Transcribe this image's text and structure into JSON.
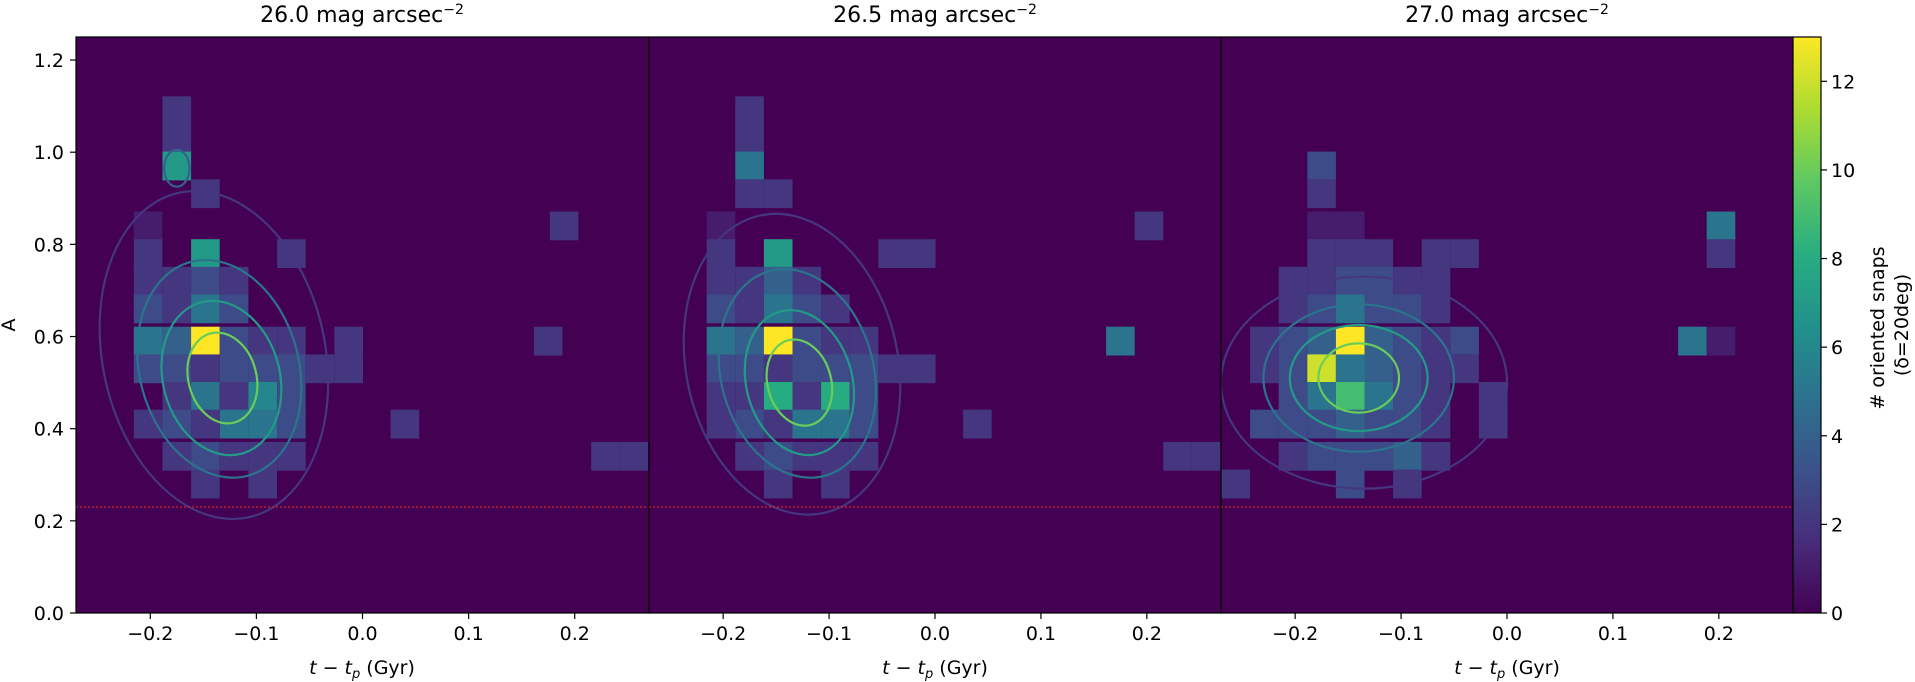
{
  "figure": {
    "ylabel": "A",
    "colorbar_label_line1": "# oriented snaps",
    "colorbar_label_line2": "(δ=20deg)"
  },
  "chart_data": {
    "type": "heatmap",
    "x_range": [
      -0.27,
      0.27
    ],
    "y_range": [
      0.0,
      1.25
    ],
    "x_ticks": [
      -0.2,
      -0.1,
      0.0,
      0.1,
      0.2
    ],
    "x_tick_labels": [
      "−0.2",
      "−0.1",
      "0.0",
      "0.1",
      "0.2"
    ],
    "y_ticks": [
      0.0,
      0.2,
      0.4,
      0.6,
      0.8,
      1.0,
      1.2
    ],
    "y_tick_labels": [
      "0.0",
      "0.2",
      "0.4",
      "0.6",
      "0.8",
      "1.0",
      "1.2"
    ],
    "bin_width_x": 0.027,
    "bin_width_y": 0.0625,
    "threshold_line_y": 0.23,
    "threshold_line_color": "#d62728",
    "colormap": "viridis",
    "colorbar": {
      "range": [
        0,
        13
      ],
      "ticks": [
        0,
        2,
        4,
        6,
        8,
        10,
        12
      ],
      "tick_labels": [
        "0",
        "2",
        "4",
        "6",
        "8",
        "10",
        "12"
      ],
      "label": "# oriented snaps (δ=20deg)"
    },
    "panels": [
      {
        "title_main": "26.0 mag arcsec",
        "title_sup": "−2",
        "xlabel_main": "t − t",
        "xlabel_sub": "p",
        "xlabel_unit": " (Gyr)",
        "show_ylabel": true,
        "bins": [
          [
            -0.175,
            1.09,
            2
          ],
          [
            -0.175,
            1.03,
            2
          ],
          [
            -0.175,
            0.97,
            7
          ],
          [
            -0.148,
            0.91,
            2
          ],
          [
            -0.202,
            0.84,
            1
          ],
          [
            -0.202,
            0.78,
            2
          ],
          [
            -0.148,
            0.78,
            7
          ],
          [
            -0.067,
            0.78,
            2
          ],
          [
            0.19,
            0.84,
            2
          ],
          [
            -0.202,
            0.72,
            2
          ],
          [
            -0.175,
            0.72,
            2
          ],
          [
            -0.148,
            0.72,
            3
          ],
          [
            -0.121,
            0.72,
            2
          ],
          [
            -0.202,
            0.66,
            3
          ],
          [
            -0.175,
            0.66,
            2
          ],
          [
            -0.148,
            0.66,
            5
          ],
          [
            -0.121,
            0.66,
            3
          ],
          [
            -0.202,
            0.59,
            5
          ],
          [
            -0.175,
            0.59,
            4
          ],
          [
            -0.148,
            0.59,
            13
          ],
          [
            -0.121,
            0.59,
            3
          ],
          [
            -0.094,
            0.59,
            2
          ],
          [
            -0.067,
            0.59,
            2
          ],
          [
            -0.013,
            0.59,
            2
          ],
          [
            0.175,
            0.59,
            2
          ],
          [
            -0.202,
            0.53,
            3
          ],
          [
            -0.175,
            0.53,
            3
          ],
          [
            -0.148,
            0.53,
            2
          ],
          [
            -0.121,
            0.53,
            3
          ],
          [
            -0.094,
            0.53,
            3
          ],
          [
            -0.067,
            0.53,
            3
          ],
          [
            -0.04,
            0.53,
            2
          ],
          [
            -0.013,
            0.53,
            2
          ],
          [
            -0.175,
            0.47,
            2
          ],
          [
            -0.148,
            0.47,
            5
          ],
          [
            -0.121,
            0.47,
            2
          ],
          [
            -0.094,
            0.47,
            6
          ],
          [
            -0.067,
            0.47,
            3
          ],
          [
            -0.202,
            0.41,
            2
          ],
          [
            -0.175,
            0.41,
            3
          ],
          [
            -0.148,
            0.41,
            2
          ],
          [
            -0.121,
            0.41,
            5
          ],
          [
            -0.094,
            0.41,
            5
          ],
          [
            -0.067,
            0.41,
            3
          ],
          [
            0.04,
            0.41,
            2
          ],
          [
            -0.175,
            0.34,
            2
          ],
          [
            -0.148,
            0.34,
            3
          ],
          [
            -0.121,
            0.34,
            2
          ],
          [
            -0.094,
            0.34,
            2
          ],
          [
            -0.067,
            0.34,
            2
          ],
          [
            0.229,
            0.34,
            2
          ],
          [
            0.256,
            0.34,
            2
          ],
          [
            -0.148,
            0.28,
            2
          ],
          [
            -0.094,
            0.28,
            2
          ]
        ],
        "contours": [
          {
            "cx": -0.14,
            "cy": 0.56,
            "rx": 0.105,
            "ry": 0.36,
            "rot": -12,
            "level": 2
          },
          {
            "cx": -0.135,
            "cy": 0.53,
            "rx": 0.075,
            "ry": 0.24,
            "rot": -15,
            "level": 5
          },
          {
            "cx": -0.133,
            "cy": 0.51,
            "rx": 0.055,
            "ry": 0.17,
            "rot": -15,
            "level": 7
          },
          {
            "cx": -0.132,
            "cy": 0.51,
            "rx": 0.032,
            "ry": 0.1,
            "rot": -15,
            "level": 10
          },
          {
            "cx": -0.175,
            "cy": 0.965,
            "rx": 0.012,
            "ry": 0.04,
            "rot": 0,
            "level": 4
          }
        ]
      },
      {
        "title_main": "26.5 mag arcsec",
        "title_sup": "−2",
        "xlabel_main": "t − t",
        "xlabel_sub": "p",
        "xlabel_unit": " (Gyr)",
        "show_ylabel": false,
        "bins": [
          [
            -0.175,
            1.09,
            2
          ],
          [
            -0.175,
            1.03,
            2
          ],
          [
            -0.175,
            0.97,
            5
          ],
          [
            -0.175,
            0.91,
            2
          ],
          [
            -0.148,
            0.91,
            2
          ],
          [
            -0.202,
            0.84,
            1
          ],
          [
            -0.202,
            0.78,
            2
          ],
          [
            -0.148,
            0.78,
            7
          ],
          [
            -0.04,
            0.78,
            2
          ],
          [
            -0.013,
            0.78,
            2
          ],
          [
            0.202,
            0.84,
            2
          ],
          [
            -0.202,
            0.72,
            2
          ],
          [
            -0.175,
            0.72,
            2
          ],
          [
            -0.148,
            0.72,
            4
          ],
          [
            -0.121,
            0.72,
            2
          ],
          [
            -0.202,
            0.66,
            3
          ],
          [
            -0.175,
            0.66,
            2
          ],
          [
            -0.148,
            0.66,
            5
          ],
          [
            -0.121,
            0.66,
            3
          ],
          [
            -0.094,
            0.66,
            2
          ],
          [
            -0.202,
            0.59,
            5
          ],
          [
            -0.175,
            0.59,
            4
          ],
          [
            -0.148,
            0.59,
            13
          ],
          [
            -0.121,
            0.59,
            3
          ],
          [
            -0.094,
            0.59,
            2
          ],
          [
            -0.067,
            0.59,
            2
          ],
          [
            0.175,
            0.59,
            5
          ],
          [
            -0.202,
            0.53,
            3
          ],
          [
            -0.175,
            0.53,
            3
          ],
          [
            -0.148,
            0.53,
            2
          ],
          [
            -0.121,
            0.53,
            3
          ],
          [
            -0.094,
            0.53,
            3
          ],
          [
            -0.067,
            0.53,
            3
          ],
          [
            -0.04,
            0.53,
            2
          ],
          [
            -0.013,
            0.53,
            2
          ],
          [
            -0.202,
            0.47,
            2
          ],
          [
            -0.175,
            0.47,
            2
          ],
          [
            -0.148,
            0.47,
            8
          ],
          [
            -0.121,
            0.47,
            2
          ],
          [
            -0.094,
            0.47,
            8
          ],
          [
            -0.067,
            0.47,
            3
          ],
          [
            -0.202,
            0.41,
            2
          ],
          [
            -0.175,
            0.41,
            3
          ],
          [
            -0.148,
            0.41,
            2
          ],
          [
            -0.121,
            0.41,
            5
          ],
          [
            -0.094,
            0.41,
            5
          ],
          [
            -0.067,
            0.41,
            3
          ],
          [
            0.04,
            0.41,
            2
          ],
          [
            -0.175,
            0.34,
            2
          ],
          [
            -0.148,
            0.34,
            3
          ],
          [
            -0.121,
            0.34,
            2
          ],
          [
            -0.094,
            0.34,
            2
          ],
          [
            -0.067,
            0.34,
            2
          ],
          [
            0.229,
            0.34,
            2
          ],
          [
            0.256,
            0.34,
            2
          ],
          [
            -0.148,
            0.28,
            2
          ],
          [
            -0.094,
            0.28,
            2
          ]
        ],
        "contours": [
          {
            "cx": -0.135,
            "cy": 0.54,
            "rx": 0.1,
            "ry": 0.33,
            "rot": -12,
            "level": 2
          },
          {
            "cx": -0.13,
            "cy": 0.52,
            "rx": 0.072,
            "ry": 0.23,
            "rot": -15,
            "level": 5
          },
          {
            "cx": -0.128,
            "cy": 0.5,
            "rx": 0.05,
            "ry": 0.16,
            "rot": -15,
            "level": 7
          },
          {
            "cx": -0.128,
            "cy": 0.5,
            "rx": 0.03,
            "ry": 0.095,
            "rot": -15,
            "level": 10
          }
        ]
      },
      {
        "title_main": "27.0 mag arcsec",
        "title_sup": "−2",
        "xlabel_main": "t − t",
        "xlabel_sub": "p",
        "xlabel_unit": " (Gyr)",
        "show_ylabel": false,
        "bins": [
          [
            -0.175,
            0.97,
            3
          ],
          [
            -0.175,
            0.91,
            2
          ],
          [
            -0.175,
            0.84,
            1
          ],
          [
            -0.148,
            0.84,
            1
          ],
          [
            0.202,
            0.84,
            5
          ],
          [
            -0.175,
            0.78,
            2
          ],
          [
            -0.148,
            0.78,
            2
          ],
          [
            -0.121,
            0.78,
            2
          ],
          [
            -0.067,
            0.78,
            2
          ],
          [
            -0.04,
            0.78,
            2
          ],
          [
            0.202,
            0.78,
            2
          ],
          [
            -0.202,
            0.72,
            2
          ],
          [
            -0.175,
            0.72,
            2
          ],
          [
            -0.148,
            0.72,
            3
          ],
          [
            -0.121,
            0.72,
            3
          ],
          [
            -0.094,
            0.72,
            2
          ],
          [
            -0.067,
            0.72,
            2
          ],
          [
            -0.202,
            0.66,
            2
          ],
          [
            -0.175,
            0.66,
            3
          ],
          [
            -0.148,
            0.66,
            5
          ],
          [
            -0.121,
            0.66,
            3
          ],
          [
            -0.094,
            0.66,
            3
          ],
          [
            -0.067,
            0.66,
            2
          ],
          [
            -0.229,
            0.59,
            2
          ],
          [
            -0.202,
            0.59,
            3
          ],
          [
            -0.175,
            0.59,
            4
          ],
          [
            -0.148,
            0.59,
            13
          ],
          [
            -0.121,
            0.59,
            4
          ],
          [
            -0.094,
            0.59,
            3
          ],
          [
            -0.067,
            0.59,
            2
          ],
          [
            -0.04,
            0.59,
            3
          ],
          [
            0.175,
            0.59,
            5
          ],
          [
            0.202,
            0.59,
            1
          ],
          [
            -0.229,
            0.53,
            2
          ],
          [
            -0.202,
            0.53,
            3
          ],
          [
            -0.175,
            0.53,
            12
          ],
          [
            -0.148,
            0.53,
            5
          ],
          [
            -0.121,
            0.53,
            4
          ],
          [
            -0.094,
            0.53,
            3
          ],
          [
            -0.067,
            0.53,
            2
          ],
          [
            -0.04,
            0.53,
            2
          ],
          [
            -0.202,
            0.47,
            3
          ],
          [
            -0.175,
            0.47,
            5
          ],
          [
            -0.148,
            0.47,
            9
          ],
          [
            -0.121,
            0.47,
            5
          ],
          [
            -0.094,
            0.47,
            3
          ],
          [
            -0.067,
            0.47,
            2
          ],
          [
            -0.013,
            0.47,
            2
          ],
          [
            -0.229,
            0.41,
            3
          ],
          [
            -0.202,
            0.41,
            3
          ],
          [
            -0.175,
            0.41,
            3
          ],
          [
            -0.148,
            0.41,
            4
          ],
          [
            -0.121,
            0.41,
            3
          ],
          [
            -0.094,
            0.41,
            3
          ],
          [
            -0.067,
            0.41,
            2
          ],
          [
            -0.013,
            0.41,
            2
          ],
          [
            -0.202,
            0.34,
            2
          ],
          [
            -0.175,
            0.34,
            3
          ],
          [
            -0.148,
            0.34,
            3
          ],
          [
            -0.121,
            0.34,
            3
          ],
          [
            -0.094,
            0.34,
            4
          ],
          [
            -0.067,
            0.34,
            2
          ],
          [
            -0.148,
            0.28,
            3
          ],
          [
            -0.094,
            0.28,
            2
          ],
          [
            -0.256,
            0.28,
            2
          ]
        ],
        "contours": [
          {
            "cx": -0.135,
            "cy": 0.5,
            "rx": 0.135,
            "ry": 0.23,
            "rot": 0,
            "level": 2
          },
          {
            "cx": -0.14,
            "cy": 0.51,
            "rx": 0.09,
            "ry": 0.16,
            "rot": 0,
            "level": 5
          },
          {
            "cx": -0.14,
            "cy": 0.51,
            "rx": 0.065,
            "ry": 0.115,
            "rot": 0,
            "level": 7
          },
          {
            "cx": -0.14,
            "cy": 0.51,
            "rx": 0.038,
            "ry": 0.075,
            "rot": 0,
            "level": 10
          }
        ]
      }
    ]
  }
}
